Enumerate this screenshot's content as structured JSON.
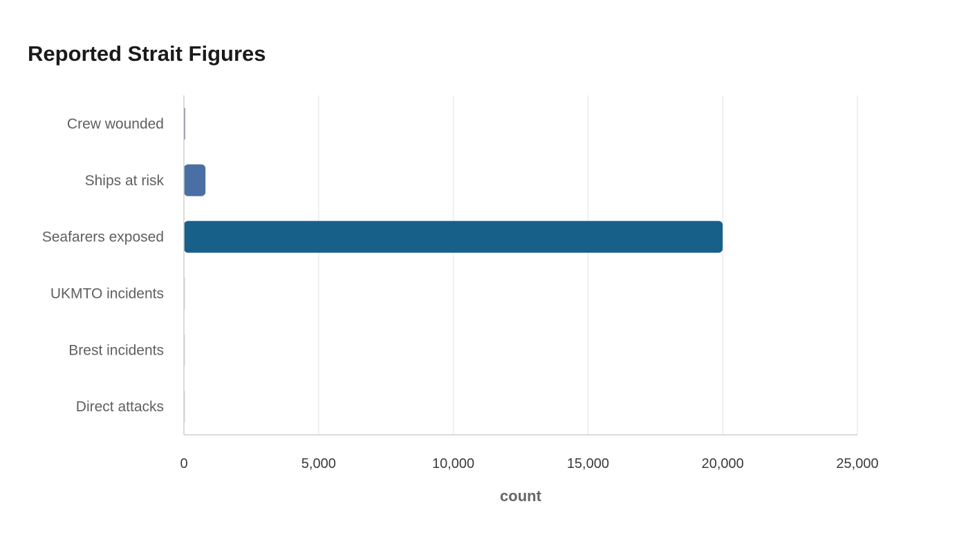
{
  "chart_data": {
    "type": "bar",
    "orientation": "horizontal",
    "title": "Reported Strait Figures",
    "xlabel": "count",
    "ylabel": "",
    "categories": [
      "Crew wounded",
      "Ships at risk",
      "Seafarers exposed",
      "UKMTO incidents",
      "Brest incidents",
      "Direct attacks"
    ],
    "values": [
      3,
      800,
      20000,
      40,
      35,
      5
    ],
    "colors": [
      "#3b3f5c",
      "#4a6fa5",
      "#17608a",
      "#d0d0d4",
      "#d0d0d4",
      "#d0d0d4"
    ],
    "xlim": [
      0,
      25000
    ],
    "xticks": [
      0,
      5000,
      10000,
      15000,
      20000,
      25000
    ],
    "xtick_labels": [
      "0",
      "5,000",
      "10,000",
      "15,000",
      "20,000",
      "25,000"
    ],
    "grid": "vertical",
    "legend": "none"
  }
}
